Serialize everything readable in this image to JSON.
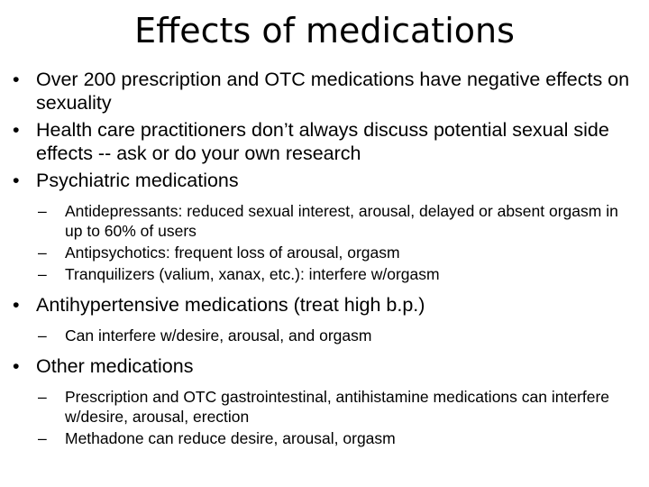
{
  "title": "Effects of medications",
  "bullets": [
    {
      "text": "Over 200 prescription and OTC medications have negative effects on sexuality",
      "sub": []
    },
    {
      "text": "Health care practitioners don’t always discuss potential sexual side effects -- ask or do your own research",
      "sub": []
    },
    {
      "text": "Psychiatric medications",
      "sub": [
        "Antidepressants: reduced sexual interest, arousal, delayed or absent orgasm in up to 60% of users",
        "Antipsychotics: frequent loss of arousal, orgasm",
        "Tranquilizers (valium, xanax, etc.): interfere w/orgasm"
      ]
    },
    {
      "text": "Antihypertensive medications (treat high b.p.)",
      "sub": [
        "Can interfere w/desire, arousal, and orgasm"
      ]
    },
    {
      "text": "Other medications",
      "sub": [
        "Prescription and OTC gastrointestinal, antihistamine medications can interfere w/desire, arousal, erection",
        "Methadone can reduce desire, arousal, orgasm"
      ]
    }
  ],
  "bullet_glyph": "•",
  "dash_glyph": "–"
}
